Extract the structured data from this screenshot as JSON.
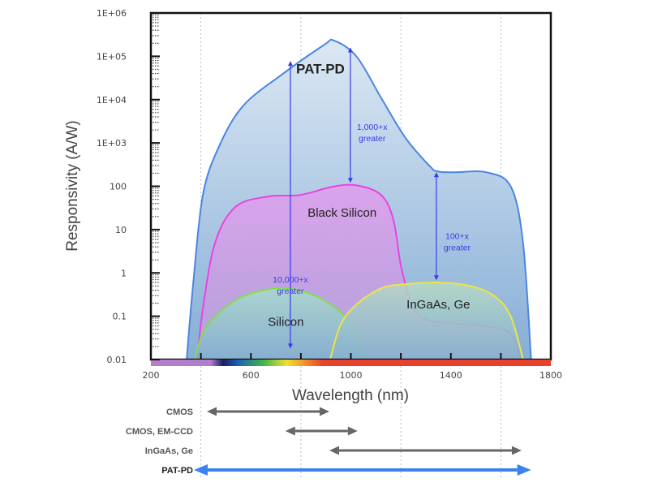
{
  "chart_data": {
    "type": "area",
    "title": "",
    "xlabel": "Wavelength (nm)",
    "ylabel": "Responsivity (A/W)",
    "xlim": [
      200,
      1800
    ],
    "ylim": [
      0.01,
      1000000
    ],
    "yscale": "log",
    "x_tick_labels": [
      "200",
      "600",
      "1000",
      "1400",
      "1800"
    ],
    "x_ticks_minor": [
      400,
      600,
      800,
      1000,
      1200,
      1400,
      1600
    ],
    "y_tick_labels": [
      {
        "v": 1000000,
        "t": "1E+06"
      },
      {
        "v": 100000,
        "t": "1E+05"
      },
      {
        "v": 10000,
        "t": "1E+04"
      },
      {
        "v": 1000,
        "t": "1E+03"
      },
      {
        "v": 100,
        "t": "100"
      },
      {
        "v": 10,
        "t": "10"
      },
      {
        "v": 1,
        "t": "1"
      },
      {
        "v": 0.1,
        "t": "0.1"
      },
      {
        "v": 0.01,
        "t": "0.01"
      }
    ],
    "grid": "vertical dotted at 400, 800, 1200, 1600",
    "series": [
      {
        "name": "PAT-PD",
        "stroke": "#4a86e0",
        "fill_top": "#dce8f4",
        "fill_bottom": "#86aed6",
        "x": [
          343,
          369,
          408,
          473,
          570,
          732,
          894,
          933,
          1024,
          1121,
          1219,
          1316,
          1348,
          1413,
          1543,
          1640,
          1689,
          1721
        ],
        "y": [
          0.01,
          0.55,
          63,
          840,
          7300,
          41000,
          185000,
          230000,
          97000,
          11000,
          1300,
          290,
          220,
          210,
          210,
          98,
          4.8,
          0.01
        ]
      },
      {
        "name": "Black Silicon",
        "stroke": "#e845e0",
        "fill_top": "#dba3ec",
        "fill_bottom": "#b0a2da",
        "x": [
          385,
          408,
          456,
          537,
          667,
          797,
          927,
          1024,
          1121,
          1170,
          1202,
          1251,
          1316,
          1478,
          1608,
          1657,
          1679
        ],
        "y": [
          0.01,
          0.15,
          4.8,
          33,
          58,
          63,
          98,
          105,
          63,
          17,
          1.3,
          0.15,
          0.079,
          0.064,
          0.05,
          0.027,
          0.01
        ]
      },
      {
        "name": "Silicon",
        "stroke": "#80e04a",
        "fill_top": "#a9dccb",
        "fill_bottom": "#7eb1cf",
        "x": [
          375,
          408,
          473,
          570,
          700,
          797,
          894,
          975,
          1040,
          1063
        ],
        "y": [
          0.01,
          0.041,
          0.12,
          0.29,
          0.44,
          0.39,
          0.23,
          0.098,
          0.027,
          0.01
        ]
      },
      {
        "name": "InGaAs, Ge",
        "stroke": "#ece447",
        "fill_top": "#b7d9c4",
        "fill_bottom": "#85b2cf",
        "x": [
          917,
          959,
          1024,
          1121,
          1219,
          1348,
          1478,
          1575,
          1640,
          1689
        ],
        "y": [
          0.01,
          0.064,
          0.19,
          0.44,
          0.55,
          0.6,
          0.5,
          0.29,
          0.098,
          0.01
        ]
      }
    ],
    "annotations": [
      {
        "text": "PAT-PD",
        "x": 1460,
        "y": 40000,
        "bold": true
      },
      {
        "text_lines": [
          "1,000+x",
          "greater"
        ],
        "x": 1085,
        "y": 2000
      },
      {
        "text": "Black Silicon",
        "x": 965,
        "y": 20
      },
      {
        "text_lines": [
          "100+x",
          "greater"
        ],
        "x": 1425,
        "y": 6
      },
      {
        "text_lines": [
          "10,000+x",
          "greater"
        ],
        "x": 758,
        "y": 0.6
      },
      {
        "text": "Silicon",
        "x": 740,
        "y": 0.06
      },
      {
        "text": "InGaAs, Ge",
        "x": 1350,
        "y": 0.15
      }
    ],
    "vertical_arrows": [
      {
        "x": 758,
        "from": 0.018,
        "to": 78000
      },
      {
        "x": 998,
        "from": 120,
        "to": 160000
      },
      {
        "x": 1342,
        "from": 0.68,
        "to": 210
      }
    ],
    "ranges": [
      {
        "label": "CMOS",
        "from": 424,
        "to": 914,
        "color": "#666666",
        "bold": false
      },
      {
        "label": "CMOS, EM-CCD",
        "from": 738,
        "to": 1027,
        "color": "#666666",
        "bold": false
      },
      {
        "label": "InGaAs, Ge",
        "from": 914,
        "to": 1683,
        "color": "#666666",
        "bold": false
      },
      {
        "label": "PAT-PD",
        "from": 372,
        "to": 1721,
        "color": "#3b82f0",
        "bold": true
      }
    ],
    "annotation_color": "#3a3ae8"
  }
}
